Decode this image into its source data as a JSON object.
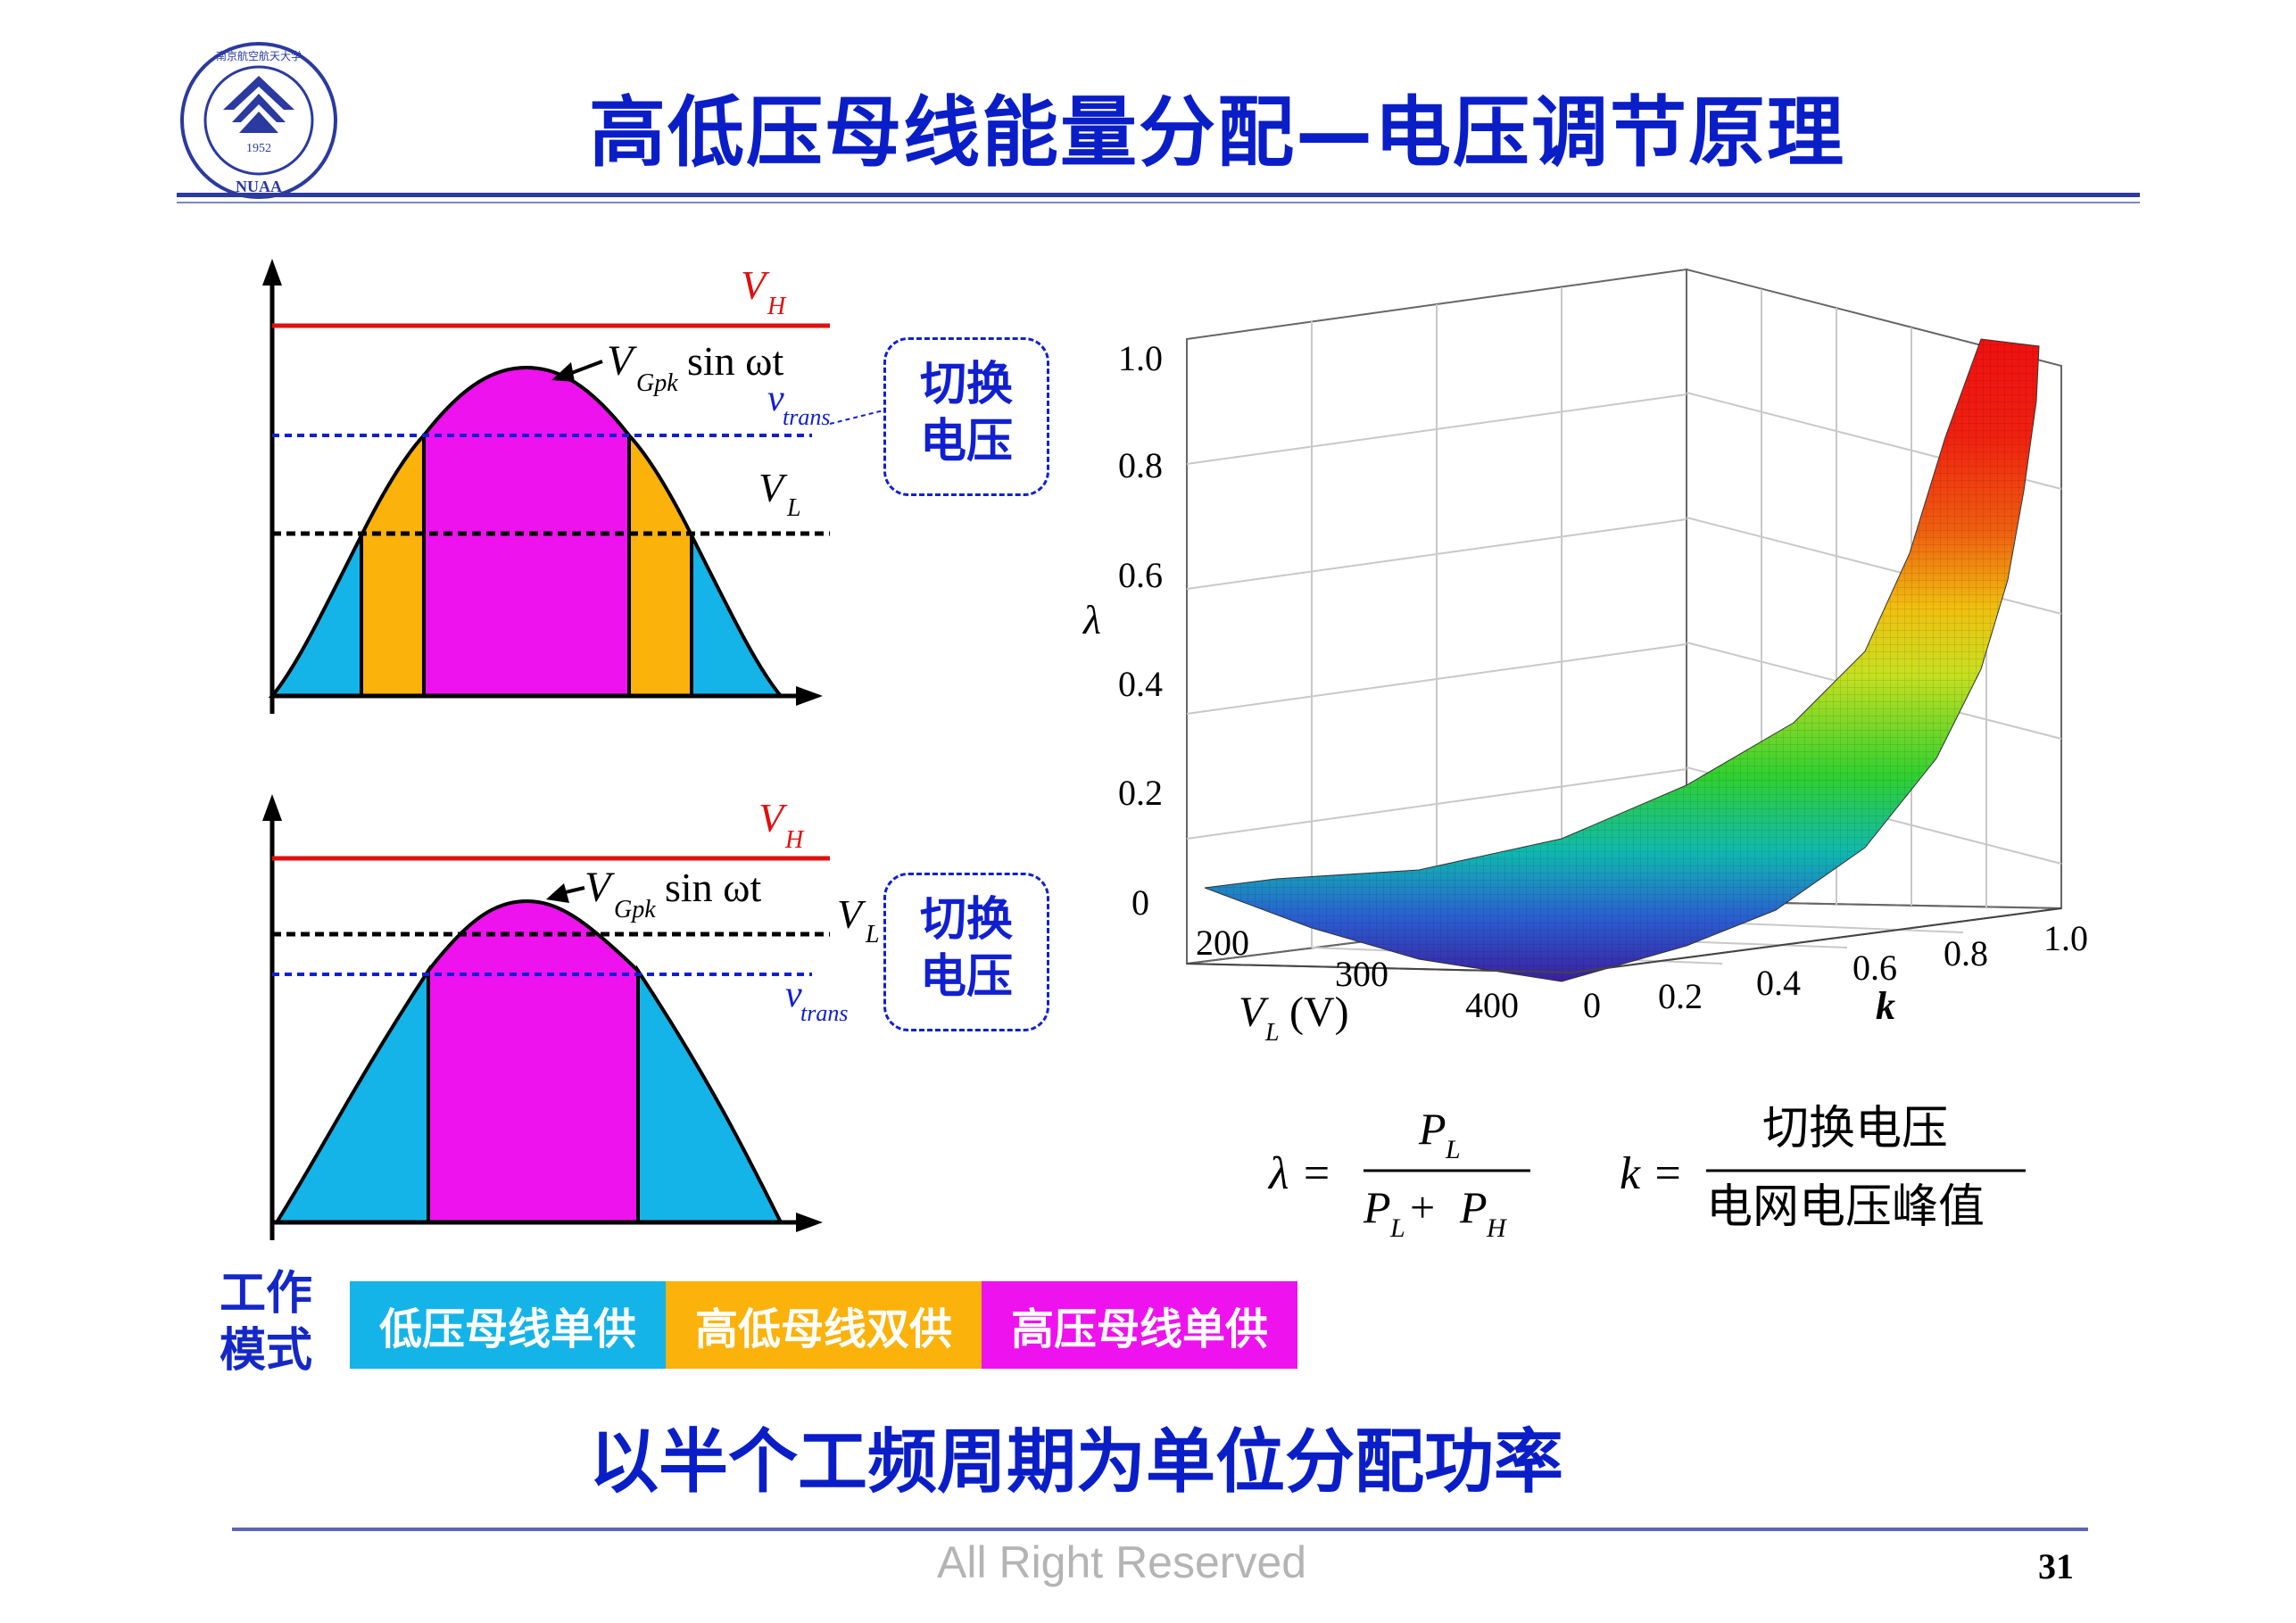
{
  "slide": {
    "title": "高低压母线能量分配—电压调节原理",
    "subtitle": "以半个工频周期为单位分配功率",
    "footer": "All Right Reserved",
    "page_number": "31"
  },
  "logo": {
    "year": "1952",
    "abbr": "NUAA",
    "ring_text": "南京航空航天大学"
  },
  "diagram_top": {
    "vh": "V",
    "vh_sub": "H",
    "wave": "V",
    "wave_sub": "Gpk",
    "wave_fn": " sin ωt",
    "vtrans": "v",
    "vtrans_sub": "trans",
    "vl": "V",
    "vl_sub": "L",
    "callout_line1": "切换",
    "callout_line2": "电压"
  },
  "diagram_bottom": {
    "vh": "V",
    "vh_sub": "H",
    "wave": "V",
    "wave_sub": "Gpk",
    "wave_fn": " sin ωt",
    "vtrans": "v",
    "vtrans_sub": "trans",
    "vl": "V",
    "vl_sub": "L",
    "callout_line1": "切换",
    "callout_line2": "电压"
  },
  "surface": {
    "z_label": "λ",
    "z_ticks": [
      "0",
      "0.2",
      "0.4",
      "0.6",
      "0.8",
      "1.0"
    ],
    "vl_ticks": [
      "200",
      "300",
      "400"
    ],
    "vl_label": "V",
    "vl_label_sub": "L",
    "vl_label_unit": "(V)",
    "k_ticks": [
      "0",
      "0.2",
      "0.4",
      "0.6",
      "0.8",
      "1.0"
    ],
    "k_label": "k"
  },
  "formulas": {
    "lambda_lhs": "λ =",
    "lambda_num": "P",
    "lambda_num_sub": "L",
    "lambda_den_a": "P",
    "lambda_den_a_sub": "L",
    "lambda_den_plus": " + ",
    "lambda_den_b": "P",
    "lambda_den_b_sub": "H",
    "k_lhs": "k =",
    "k_num": "切换电压",
    "k_den": "电网电压峰值"
  },
  "modes": {
    "label_line1": "工作",
    "label_line2": "模式",
    "items": [
      {
        "label": "低压母线单供",
        "color": "#15b4e8"
      },
      {
        "label": "高低母线双供",
        "color": "#fbb20a"
      },
      {
        "label": "高压母线单供",
        "color": "#ee12ee"
      }
    ]
  },
  "colors": {
    "title": "#0a1ec8",
    "vh_line": "#e01010",
    "vtrans_line": "#1020d0",
    "vl_line": "#000000",
    "low_bus": "#15b4e8",
    "dual_bus": "#fbb20a",
    "high_bus": "#ee12ee"
  }
}
